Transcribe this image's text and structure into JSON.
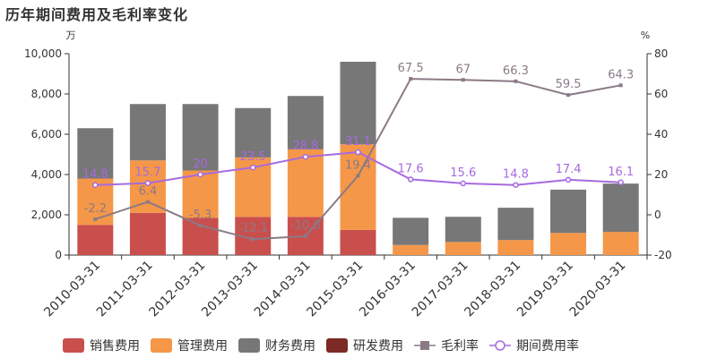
{
  "chart_data": {
    "type": "bar",
    "title": "历年期间费用及毛利率变化",
    "categories": [
      "2010-03-31",
      "2011-03-31",
      "2012-03-31",
      "2013-03-31",
      "2014-03-31",
      "2015-03-31",
      "2016-03-31",
      "2017-03-31",
      "2018-03-31",
      "2019-03-31",
      "2020-03-31"
    ],
    "y_left": {
      "unit": "万",
      "ylim": [
        0,
        10000
      ],
      "ticks": [
        "0",
        "2,000",
        "4,000",
        "6,000",
        "8,000",
        "10,000"
      ]
    },
    "y_right": {
      "unit": "%",
      "ylim": [
        -20,
        80
      ],
      "ticks": [
        "-20",
        "0",
        "20",
        "40",
        "60",
        "80"
      ]
    },
    "bar_series": [
      {
        "name": "销售费用",
        "color": "#c94f4d",
        "values": [
          1500,
          2100,
          1850,
          1900,
          1900,
          1250,
          0,
          0,
          0,
          0,
          0
        ]
      },
      {
        "name": "管理费用",
        "color": "#f59748",
        "values": [
          2300,
          2600,
          2350,
          2950,
          3350,
          4250,
          500,
          650,
          750,
          1100,
          1150
        ]
      },
      {
        "name": "财务费用",
        "color": "#777777",
        "values": [
          2500,
          2800,
          3300,
          2450,
          2650,
          4100,
          1350,
          1250,
          1600,
          2150,
          2400
        ]
      },
      {
        "name": "研发费用",
        "color": "#7b2a25",
        "values": [
          0,
          0,
          0,
          0,
          0,
          0,
          0,
          0,
          0,
          0,
          0
        ]
      }
    ],
    "line_series": [
      {
        "name": "毛利率",
        "color": "#8a7a86",
        "values": [
          -2.2,
          6.4,
          -5.3,
          -12.1,
          -10.6,
          19.4,
          67.5,
          67,
          66.3,
          59.5,
          64.3
        ],
        "labels": [
          "-2.2",
          "6.4",
          "-5.3",
          "-12.1",
          "-10.6",
          "19.4",
          "67.5",
          "67",
          "66.3",
          "59.5",
          "64.3"
        ]
      },
      {
        "name": "期间费用率",
        "color": "#a66ae0",
        "values": [
          14.8,
          15.7,
          20,
          23.5,
          28.8,
          31.1,
          17.6,
          15.6,
          14.8,
          17.4,
          16.1
        ],
        "labels": [
          "14.8",
          "15.7",
          "20",
          "23.5",
          "28.8",
          "31.1",
          "17.6",
          "15.6",
          "14.8",
          "17.4",
          "16.1"
        ]
      }
    ],
    "legend_position": "bottom",
    "grid": false
  }
}
